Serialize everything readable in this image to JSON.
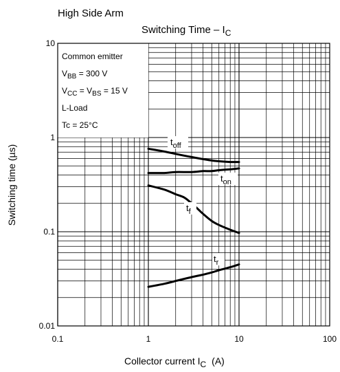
{
  "chart_data": {
    "type": "line",
    "heading": "High Side Arm",
    "title": {
      "main": "Switching Time – I",
      "sub": "C"
    },
    "xlabel": {
      "main": "Collector current  I",
      "sub": "C",
      "unit": "(A)"
    },
    "ylabel": "Switching time   (µs)",
    "x_scale": "log",
    "y_scale": "log",
    "xlim": [
      0.1,
      100
    ],
    "ylim": [
      0.01,
      10
    ],
    "x_ticks": [
      "0.1",
      "1",
      "10",
      "100"
    ],
    "y_ticks": [
      "0.01",
      "0.1",
      "1",
      "10"
    ],
    "grid": true,
    "conditions": [
      {
        "text": "Common emitter"
      },
      {
        "pre": "V",
        "sub": "BB",
        "post": " = 300 V"
      },
      {
        "pre": "V",
        "sub": "CC",
        "post": " = V",
        "sub2": "BS",
        "post2": " = 15 V"
      },
      {
        "text": "L-Load"
      },
      {
        "text": "Tc = 25°C"
      }
    ],
    "series": [
      {
        "name": "t",
        "sub": "off",
        "x": [
          1,
          1.5,
          2,
          3,
          4,
          5,
          6,
          8,
          10
        ],
        "y": [
          0.76,
          0.71,
          0.67,
          0.62,
          0.59,
          0.57,
          0.56,
          0.55,
          0.55
        ]
      },
      {
        "name": "t",
        "sub": "on",
        "x": [
          1,
          1.5,
          2,
          3,
          4,
          5,
          6,
          8,
          10
        ],
        "y": [
          0.42,
          0.42,
          0.43,
          0.43,
          0.44,
          0.44,
          0.45,
          0.46,
          0.47
        ]
      },
      {
        "name": "t",
        "sub": "f",
        "x": [
          1,
          1.5,
          2,
          2.5,
          3,
          3.5,
          4,
          5,
          6,
          8,
          10
        ],
        "y": [
          0.31,
          0.28,
          0.25,
          0.23,
          0.2,
          0.175,
          0.155,
          0.13,
          0.118,
          0.105,
          0.097
        ]
      },
      {
        "name": "t",
        "sub": "r",
        "x": [
          1,
          1.5,
          2,
          3,
          4,
          5,
          6,
          8,
          10
        ],
        "y": [
          0.026,
          0.028,
          0.03,
          0.033,
          0.035,
          0.037,
          0.039,
          0.042,
          0.045
        ]
      }
    ]
  }
}
